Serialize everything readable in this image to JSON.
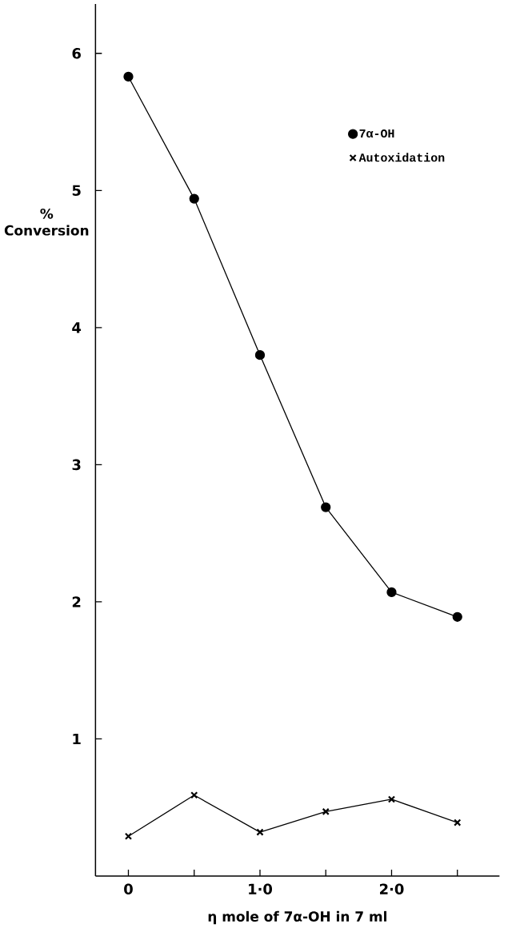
{
  "chart_data": {
    "type": "line",
    "xlabel": "η mole of 7α-OH in 7 ml",
    "ylabel": "% Conversion",
    "categories": [
      "0",
      null,
      "1·0",
      null,
      "2·0",
      null
    ],
    "series": [
      {
        "name": "7α-OH",
        "color": "#000000",
        "marker": "circle",
        "values": [
          5.83,
          4.94,
          3.8,
          2.69,
          2.07,
          1.89
        ]
      },
      {
        "name": "Autoxidation",
        "color": "#000000",
        "marker": "cross",
        "values": [
          0.29,
          0.59,
          0.32,
          0.47,
          0.56,
          0.39
        ]
      }
    ],
    "ylim": [
      0,
      6.36
    ],
    "yticks": [
      1,
      2,
      3,
      4,
      5,
      6
    ],
    "legend": "top right",
    "line_style": "solid",
    "grid": false
  }
}
